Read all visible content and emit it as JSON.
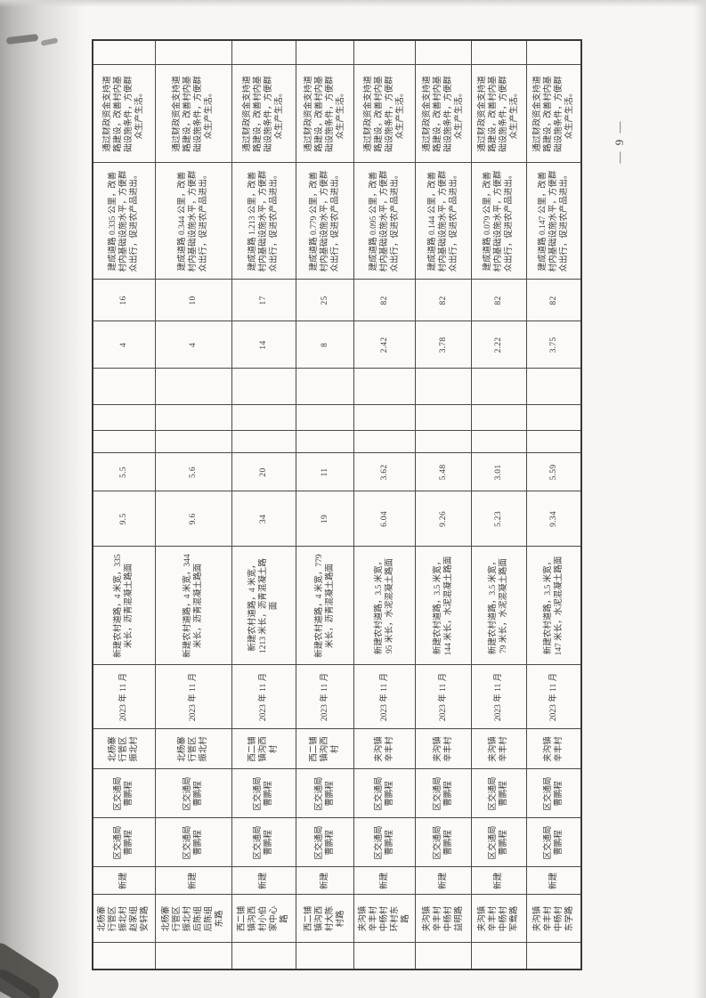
{
  "page": {
    "number_label": "— 9 —"
  },
  "colors": {
    "paper": "#f7f6f3",
    "ink": "#3d3b38",
    "grid_line": "#4b4945"
  },
  "table": {
    "rows": [
      {
        "project_name": "北杨寨\n行管区\n振北村\n赵家组\n安轩路",
        "build_nature": "新建",
        "unit_person_1": "区交通局\n曹鹏程",
        "unit_person_2": "区交通局\n曹鹏程",
        "location": "北杨寨\n行管区\n振北村",
        "completion_date": "2023 年 11 月",
        "build_content": "新建农村道路，4 米宽，335\n米长，沥青混凝土路面",
        "amount_1": "9.5",
        "amount_2": "5.5",
        "amount_3": "4",
        "amount_4": "16",
        "performance": "建成道路 0.335 公里，改善\n村内基础设施水平，方便群\n众出行，促进农产品进出。",
        "necessity": "通过财政资金支持道\n路建设，改善村内基\n础设施条件，方便群\n众生产生活。"
      },
      {
        "project_name": "北杨寨\n行管区\n振北村\n后陈组\n后陈组\n东路",
        "build_nature": "新建",
        "unit_person_1": "区交通局\n曹鹏程",
        "unit_person_2": "区交通局\n曹鹏程",
        "location": "北杨寨\n行管区\n振北村",
        "completion_date": "2023 年 11 月",
        "build_content": "新建农村道路，4 米宽，344\n米长，沥青混凝土路面",
        "amount_1": "9.6",
        "amount_2": "5.6",
        "amount_3": "4",
        "amount_4": "10",
        "performance": "建成道路 0.344 公里，改善\n村内基础设施水平，方便群\n众出行，促进农产品进出。",
        "necessity": "通过财政资金支持道\n路建设，改善村内基\n础设施条件，方便群\n众生产生活。"
      },
      {
        "project_name": "西二铺\n镇沟西\n村小伯\n家中心\n路",
        "build_nature": "新建",
        "unit_person_1": "区交通局\n曹鹏程",
        "unit_person_2": "区交通局\n曹鹏程",
        "location": "西二铺\n镇沟西\n村",
        "completion_date": "2023 年 11 月",
        "build_content": "新建农村道路，4 米宽，\n1213 米长，沥青混凝土路\n面",
        "amount_1": "34",
        "amount_2": "20",
        "amount_3": "14",
        "amount_4": "17",
        "performance": "建成道路 1.213 公里，改善\n村内基础设施水平，方便群\n众出行，促进农产品进出。",
        "necessity": "通过财政资金支持道\n路建设，改善村内基\n础设施条件，方便群\n众生产生活。"
      },
      {
        "project_name": "西二铺\n镇沟西\n村大陈\n村路",
        "build_nature": "新建",
        "unit_person_1": "区交通局\n曹鹏程",
        "unit_person_2": "区交通局\n曹鹏程",
        "location": "西二铺\n镇沟西\n村",
        "completion_date": "2023 年 11 月",
        "build_content": "新建农村道路，4 米宽，779\n米长，沥青混凝土路面",
        "amount_1": "19",
        "amount_2": "11",
        "amount_3": "8",
        "amount_4": "25",
        "performance": "建成道路 0.779 公里，改善\n村内基础设施水平，方便群\n众出行，促进农产品进出。",
        "necessity": "通过财政资金支持道\n路建设，改善村内基\n础设施条件，方便群\n众生产生活。"
      },
      {
        "project_name": "夹沟镇\n辛丰村\n中杨村\n环村东\n路",
        "build_nature": "新建",
        "unit_person_1": "区交通局\n曹鹏程",
        "unit_person_2": "区交通局\n曹鹏程",
        "location": "夹沟镇\n辛丰村",
        "completion_date": "2023 年 11 月",
        "build_content": "新建农村道路，3.5 米宽，\n95 米长，水泥混凝土路面",
        "amount_1": "6.04",
        "amount_2": "3.62",
        "amount_3": "2.42",
        "amount_4": "82",
        "performance": "建成道路 0.095 公里，改善\n村内基础设施水平，方便群\n众出行，促进农产品进出。",
        "necessity": "通过财政资金支持道\n路建设，改善村内基\n础设施条件，方便群\n众生产生活。"
      },
      {
        "project_name": "夹沟镇\n辛丰村\n中杨村\n益明路",
        "build_nature": "新建",
        "unit_person_1": "区交通局\n曹鹏程",
        "unit_person_2": "区交通局\n曹鹏程",
        "location": "夹沟镇\n辛丰村",
        "completion_date": "2023 年 11 月",
        "build_content": "新建农村道路，3.5 米宽，\n144 米长，水泥混凝土路面",
        "amount_1": "9.26",
        "amount_2": "5.48",
        "amount_3": "3.78",
        "amount_4": "82",
        "performance": "建成道路 0.144 公里，改善\n村内基础设施水平，方便群\n众出行，促进农产品进出。",
        "necessity": "通过财政资金支持道\n路建设，改善村内基\n础设施条件，方便群\n众生产生活。"
      },
      {
        "project_name": "夹沟镇\n辛丰村\n中杨村\n军鸯路",
        "build_nature": "新建",
        "unit_person_1": "区交通局\n曹鹏程",
        "unit_person_2": "区交通局\n曹鹏程",
        "location": "夹沟镇\n辛丰村",
        "completion_date": "2023 年 11 月",
        "build_content": "新建农村道路，3.5 米宽，\n79 米长，水泥混凝土路面",
        "amount_1": "5.23",
        "amount_2": "3.01",
        "amount_3": "2.22",
        "amount_4": "82",
        "performance": "建成道路 0.079 公里，改善\n村内基础设施水平，方便群\n众出行，促进农产品进出。",
        "necessity": "通过财政资金支持道\n路建设，改善村内基\n础设施条件，方便群\n众生产生活。"
      },
      {
        "project_name": "夹沟镇\n辛丰村\n中杨村\n东学路",
        "build_nature": "新建",
        "unit_person_1": "区交通局\n曹鹏程",
        "unit_person_2": "区交通局\n曹鹏程",
        "location": "夹沟镇\n辛丰村",
        "completion_date": "2023 年 11 月",
        "build_content": "新建农村道路，3.5 米宽，\n147 米长，水泥混凝土路面",
        "amount_1": "9.34",
        "amount_2": "5.59",
        "amount_3": "3.75",
        "amount_4": "82",
        "performance": "建成道路 0.147 公里，改善\n村内基础设施水平，方便群\n众出行，促进农产品进出。",
        "necessity": "通过财政资金支持道\n路建设，改善村内基\n础设施条件，方便群\n众生产生活。"
      }
    ]
  }
}
